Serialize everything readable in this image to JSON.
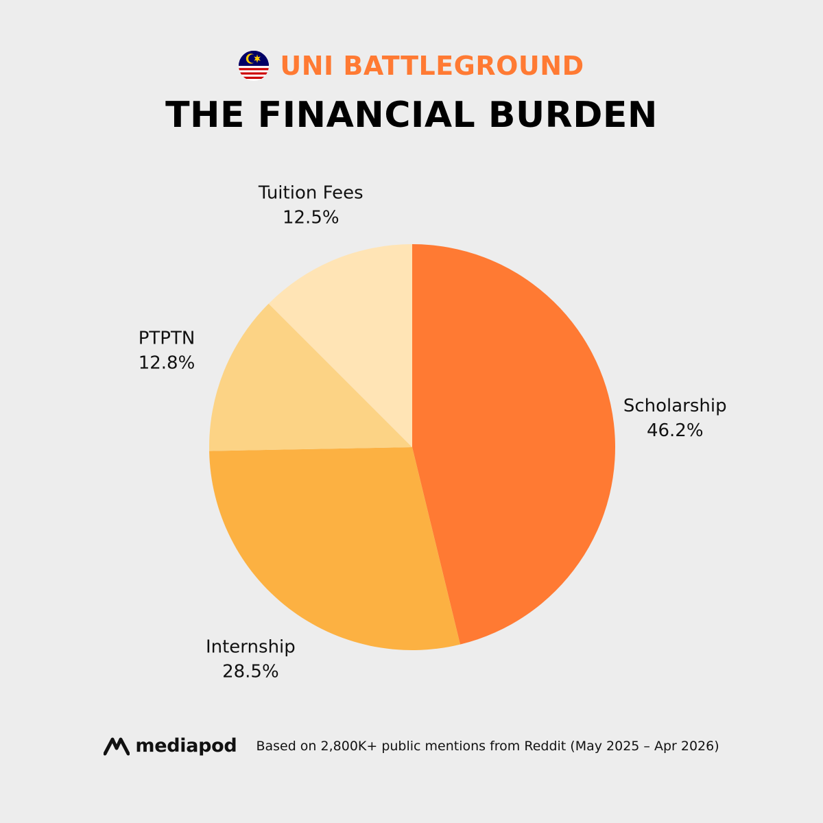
{
  "header": {
    "kicker": "UNI BATTLEGROUND",
    "title": "THE FINANCIAL BURDEN",
    "flag_icon": "malaysia-flag-icon"
  },
  "colors": {
    "accent": "#ff7a33",
    "background": "#ededed",
    "slices": [
      "#ff7a33",
      "#fcb142",
      "#fcd385",
      "#ffe4b5"
    ]
  },
  "chart_data": {
    "type": "pie",
    "title": "THE FINANCIAL BURDEN",
    "start": "12 o'clock",
    "direction": "clockwise",
    "slices": [
      {
        "label": "Scholarship",
        "value": 46.2,
        "display": "46.2%"
      },
      {
        "label": "Internship",
        "value": 28.5,
        "display": "28.5%"
      },
      {
        "label": "PTPTN",
        "value": 12.8,
        "display": "12.8%"
      },
      {
        "label": "Tuition Fees",
        "value": 12.5,
        "display": "12.5%"
      }
    ]
  },
  "footer": {
    "brand": "mediapod",
    "source": "Based on 2,800K+ public mentions from Reddit (May 2025 – Apr 2026)"
  }
}
